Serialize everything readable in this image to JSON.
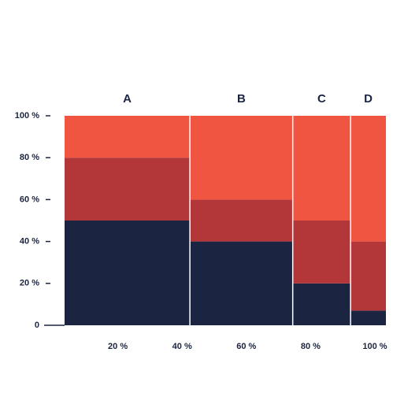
{
  "chart_data": {
    "type": "mosaic",
    "categories": [
      "A",
      "B",
      "C",
      "D"
    ],
    "widths": [
      39,
      32,
      18,
      11
    ],
    "series": [
      {
        "color": "#1b2440",
        "values": [
          50,
          40,
          20,
          7
        ]
      },
      {
        "color": "#b33638",
        "values": [
          30,
          20,
          30,
          33
        ]
      },
      {
        "color": "#f05542",
        "values": [
          20,
          40,
          50,
          60
        ]
      }
    ],
    "xlim": [
      0,
      100
    ],
    "xticks": [
      {
        "value": 20,
        "label": "20 %"
      },
      {
        "value": 40,
        "label": "40 %"
      },
      {
        "value": 60,
        "label": "60 %"
      },
      {
        "value": 80,
        "label": "80 %"
      },
      {
        "value": 100,
        "label": "100 %"
      }
    ],
    "ylim": [
      0,
      100
    ],
    "yticks": [
      0,
      {
        "value": 20,
        "label": "20 %"
      },
      {
        "value": 40,
        "label": "40 %"
      },
      {
        "value": 60,
        "label": "60 %"
      },
      {
        "value": 80,
        "label": "80 %"
      },
      {
        "value": 100,
        "label": "100 %"
      }
    ]
  }
}
